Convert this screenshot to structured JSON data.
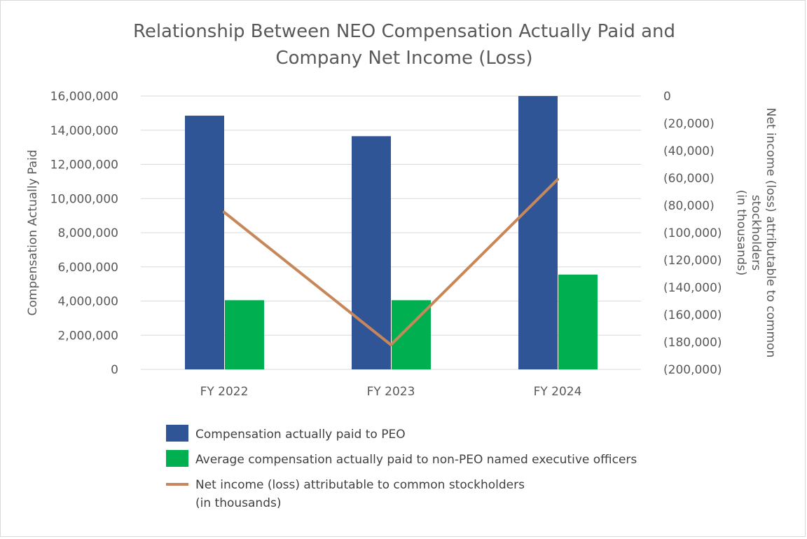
{
  "chart_data": {
    "type": "bar",
    "title_lines": [
      "Relationship Between NEO Compensation Actually Paid and",
      "Company Net Income (Loss)"
    ],
    "categories": [
      "FY 2022",
      "FY 2023",
      "FY 2024"
    ],
    "ylabel": "Compensation Actually Paid",
    "ylabel_right_lines": [
      "Net income (loss) attributable to common",
      "stockholders",
      "(in thousands)"
    ],
    "ylim": [
      0,
      16000000
    ],
    "ylim_right": [
      -200000,
      0
    ],
    "yticks": [
      "0",
      "2,000,000",
      "4,000,000",
      "6,000,000",
      "8,000,000",
      "10,000,000",
      "12,000,000",
      "14,000,000",
      "16,000,000"
    ],
    "yticks_right": [
      "(200,000)",
      "(180,000)",
      "(160,000)",
      "(140,000)",
      "(120,000)",
      "(100,000)",
      "(80,000)",
      "(60,000)",
      "(40,000)",
      "(20,000)",
      "0"
    ],
    "grid": true,
    "legend_position": "bottom",
    "series": [
      {
        "name": "Compensation actually paid to PEO",
        "type": "bar",
        "axis": "left",
        "color": "#2f5597",
        "values": [
          14850000,
          13650000,
          16000000
        ]
      },
      {
        "name": "Average compensation actually paid to non-PEO named executive officers",
        "type": "bar",
        "axis": "left",
        "color": "#00b050",
        "values": [
          4050000,
          4050000,
          5550000
        ]
      },
      {
        "name_lines": [
          "Net income (loss) attributable to common stockholders",
          "(in thousands)"
        ],
        "type": "line",
        "axis": "right",
        "color": "#c8875a",
        "values": [
          -85000,
          -182000,
          -61000
        ]
      }
    ]
  }
}
